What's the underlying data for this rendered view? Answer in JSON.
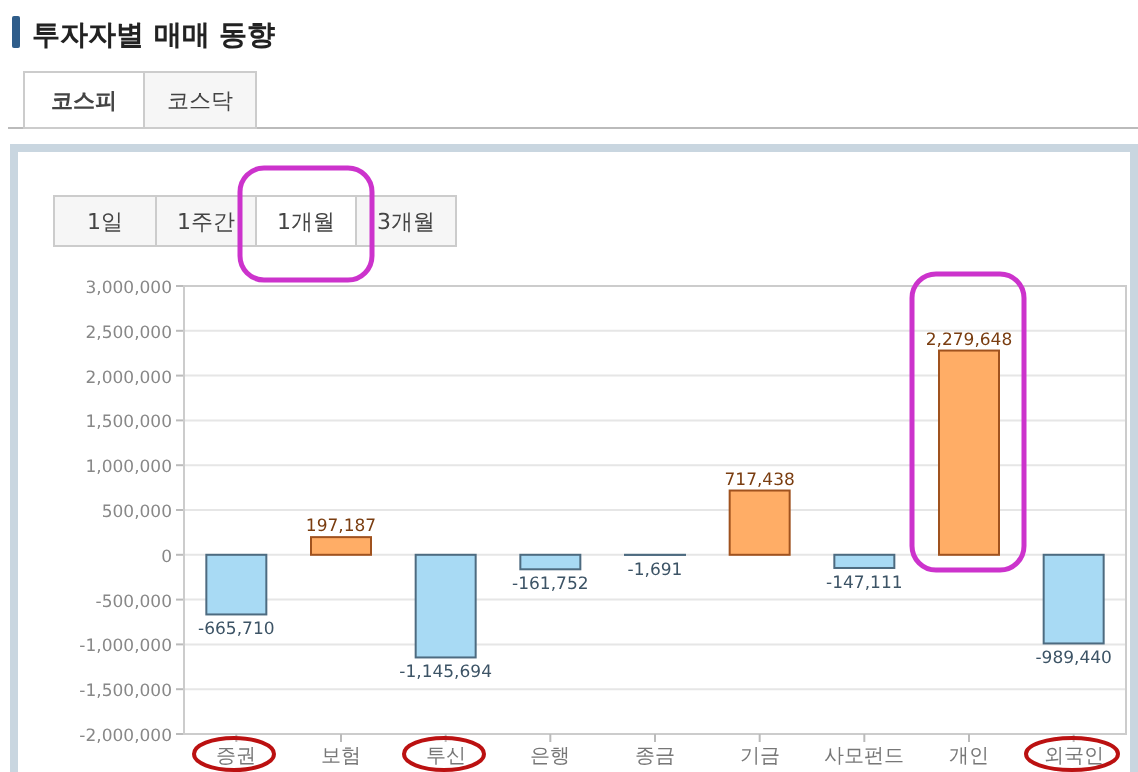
{
  "chart_data": {
    "type": "bar",
    "title": "투자자별 매매 동향",
    "annotations": [
      "코스피",
      "코스닥",
      "1일",
      "1주간",
      "1개월",
      "3개월"
    ],
    "categories": [
      "증권",
      "보험",
      "투신",
      "은행",
      "종금",
      "기금",
      "사모펀드",
      "개인",
      "외국인"
    ],
    "values": [
      -665710,
      197187,
      -1145694,
      -161752,
      -1691,
      717438,
      -147111,
      2279648,
      -989440
    ],
    "value_labels": [
      "-665,710",
      "197,187",
      "-1,145,694",
      "-161,752",
      "-1,691",
      "717,438",
      "-147,111",
      "2,279,648",
      "-989,440"
    ],
    "colors": [
      "#a8daf4",
      "#ffad66",
      "#a8daf4",
      "#a8daf4",
      "#a8daf4",
      "#ffad66",
      "#a8daf4",
      "#ffad66",
      "#a8daf4"
    ],
    "ylim": [
      -2000000,
      3000000
    ],
    "yticks": [
      {
        "value": -2000000,
        "label": "-2,000,000"
      },
      {
        "value": -1500000,
        "label": "-1,500,000"
      },
      {
        "value": -1000000,
        "label": "-1,000,000"
      },
      {
        "value": -500000,
        "label": "-500,000"
      },
      {
        "value": 0,
        "label": "0"
      },
      {
        "value": 500000,
        "label": "500,000"
      },
      {
        "value": 1000000,
        "label": "1,000,000"
      },
      {
        "value": 1500000,
        "label": "1,500,000"
      },
      {
        "value": 2000000,
        "label": "2,000,000"
      },
      {
        "value": 2500000,
        "label": "2,500,000"
      },
      {
        "value": 3000000,
        "label": "3,000,000"
      }
    ],
    "grid": "y"
  }
}
